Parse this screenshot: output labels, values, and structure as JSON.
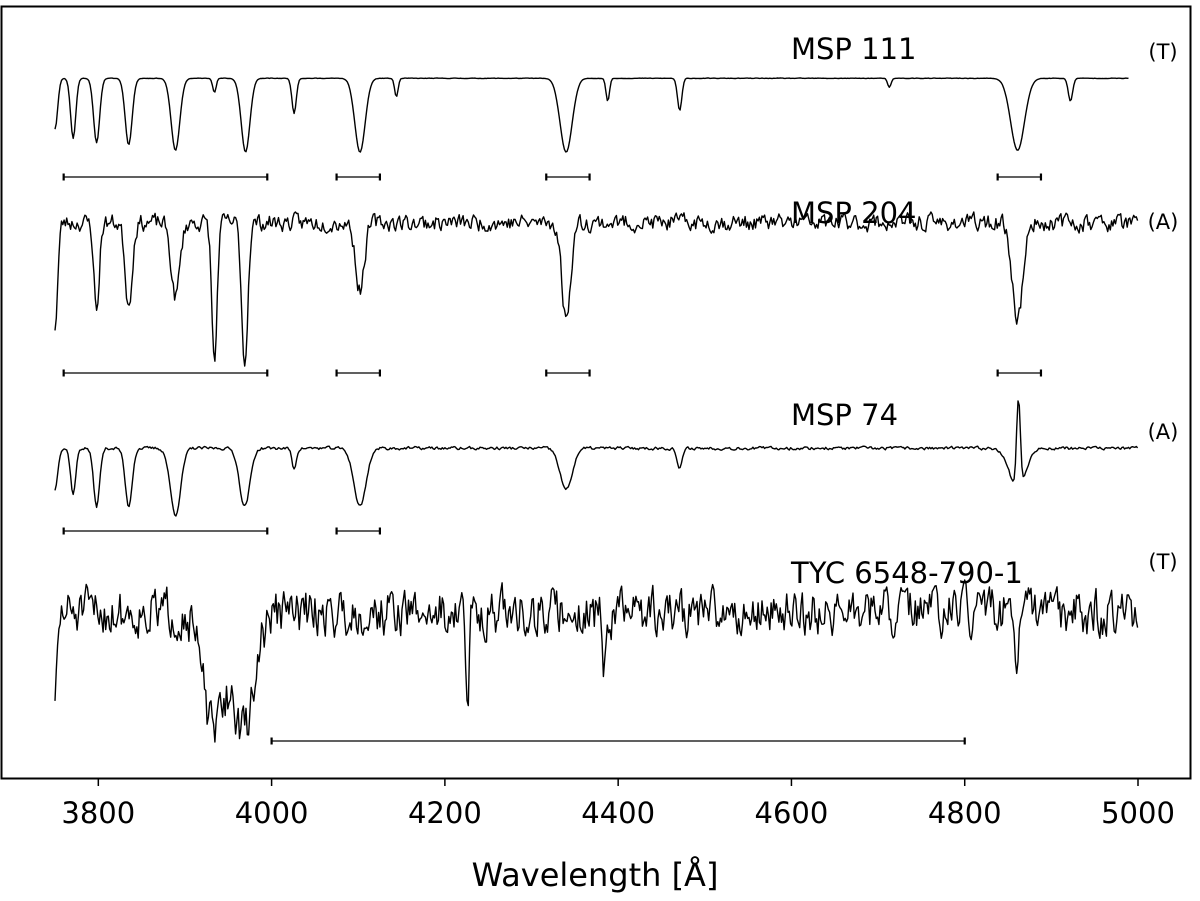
{
  "chart_data": {
    "type": "line",
    "title": "",
    "xlabel": "Wavelength [Å]",
    "ylabel": "",
    "xlim": [
      3700,
      5020
    ],
    "xticks": [
      3800,
      4000,
      4200,
      4400,
      4600,
      4800,
      5000
    ],
    "yticks": [],
    "grid": false,
    "legend": "none",
    "line_color": "#000000",
    "spectra": [
      {
        "label": "MSP 111",
        "class": "(T)",
        "x_range": [
          3750,
          4990
        ],
        "noise": 0.004,
        "lines": [
          {
            "center": 3750,
            "depth": 0.55,
            "width": 3
          },
          {
            "center": 3771,
            "depth": 0.65,
            "width": 3
          },
          {
            "center": 3798,
            "depth": 0.7,
            "width": 3.5
          },
          {
            "center": 3835,
            "depth": 0.72,
            "width": 4
          },
          {
            "center": 3889,
            "depth": 0.78,
            "width": 5
          },
          {
            "center": 3934,
            "depth": 0.15,
            "width": 2
          },
          {
            "center": 3970,
            "depth": 0.8,
            "width": 5
          },
          {
            "center": 4026,
            "depth": 0.38,
            "width": 2.5
          },
          {
            "center": 4102,
            "depth": 0.8,
            "width": 6
          },
          {
            "center": 4144,
            "depth": 0.2,
            "width": 2
          },
          {
            "center": 4340,
            "depth": 0.8,
            "width": 7
          },
          {
            "center": 4388,
            "depth": 0.25,
            "width": 2
          },
          {
            "center": 4471,
            "depth": 0.35,
            "width": 2.5
          },
          {
            "center": 4713,
            "depth": 0.1,
            "width": 2
          },
          {
            "center": 4861,
            "depth": 0.78,
            "width": 8
          },
          {
            "center": 4922,
            "depth": 0.25,
            "width": 2.5
          }
        ],
        "bars": [
          [
            3760,
            3995
          ],
          [
            4075,
            4125
          ],
          [
            4317,
            4367
          ],
          [
            4838,
            4888
          ]
        ]
      },
      {
        "label": "MSP 204",
        "class": "(A)",
        "x_range": [
          3750,
          5000
        ],
        "noise": 0.09,
        "lines": [
          {
            "center": 3750,
            "depth": 0.7,
            "width": 3
          },
          {
            "center": 3798,
            "depth": 0.6,
            "width": 3
          },
          {
            "center": 3835,
            "depth": 0.55,
            "width": 4
          },
          {
            "center": 3889,
            "depth": 0.5,
            "width": 5
          },
          {
            "center": 3934,
            "depth": 0.95,
            "width": 3
          },
          {
            "center": 3969,
            "depth": 0.95,
            "width": 3.5
          },
          {
            "center": 4102,
            "depth": 0.45,
            "width": 5
          },
          {
            "center": 4340,
            "depth": 0.65,
            "width": 5
          },
          {
            "center": 4861,
            "depth": 0.65,
            "width": 6
          }
        ],
        "bars": [
          [
            3760,
            3995
          ],
          [
            4075,
            4125
          ],
          [
            4317,
            4367
          ],
          [
            4838,
            4888
          ]
        ]
      },
      {
        "label": "MSP 74",
        "class": "(A)",
        "x_range": [
          3750,
          5000
        ],
        "noise": 0.03,
        "emission": [
          4862,
          1.1,
          2.2
        ],
        "lines": [
          {
            "center": 3750,
            "depth": 0.5,
            "width": 3
          },
          {
            "center": 3771,
            "depth": 0.55,
            "width": 3
          },
          {
            "center": 3798,
            "depth": 0.7,
            "width": 3.5
          },
          {
            "center": 3835,
            "depth": 0.7,
            "width": 4
          },
          {
            "center": 3889,
            "depth": 0.8,
            "width": 6
          },
          {
            "center": 3969,
            "depth": 0.7,
            "width": 6
          },
          {
            "center": 4026,
            "depth": 0.25,
            "width": 2.5
          },
          {
            "center": 4102,
            "depth": 0.7,
            "width": 7
          },
          {
            "center": 4340,
            "depth": 0.5,
            "width": 7
          },
          {
            "center": 4471,
            "depth": 0.25,
            "width": 3
          },
          {
            "center": 4861,
            "depth": 0.5,
            "width": 9
          }
        ],
        "bars": [
          [
            3760,
            3995
          ],
          [
            4075,
            4125
          ]
        ]
      },
      {
        "label": "TYC 6548-790-1",
        "class": "(T)",
        "x_range": [
          3750,
          5000
        ],
        "noise": 0.28,
        "lines": [
          {
            "center": 3750,
            "depth": 0.6,
            "width": 3
          },
          {
            "center": 3933,
            "depth": 0.9,
            "width": 12
          },
          {
            "center": 3968,
            "depth": 0.9,
            "width": 12
          },
          {
            "center": 4226,
            "depth": 0.7,
            "width": 2
          },
          {
            "center": 4384,
            "depth": 0.5,
            "width": 2
          },
          {
            "center": 4861,
            "depth": 0.45,
            "width": 2
          }
        ],
        "bars": [
          [
            4000,
            4800
          ]
        ]
      }
    ]
  }
}
